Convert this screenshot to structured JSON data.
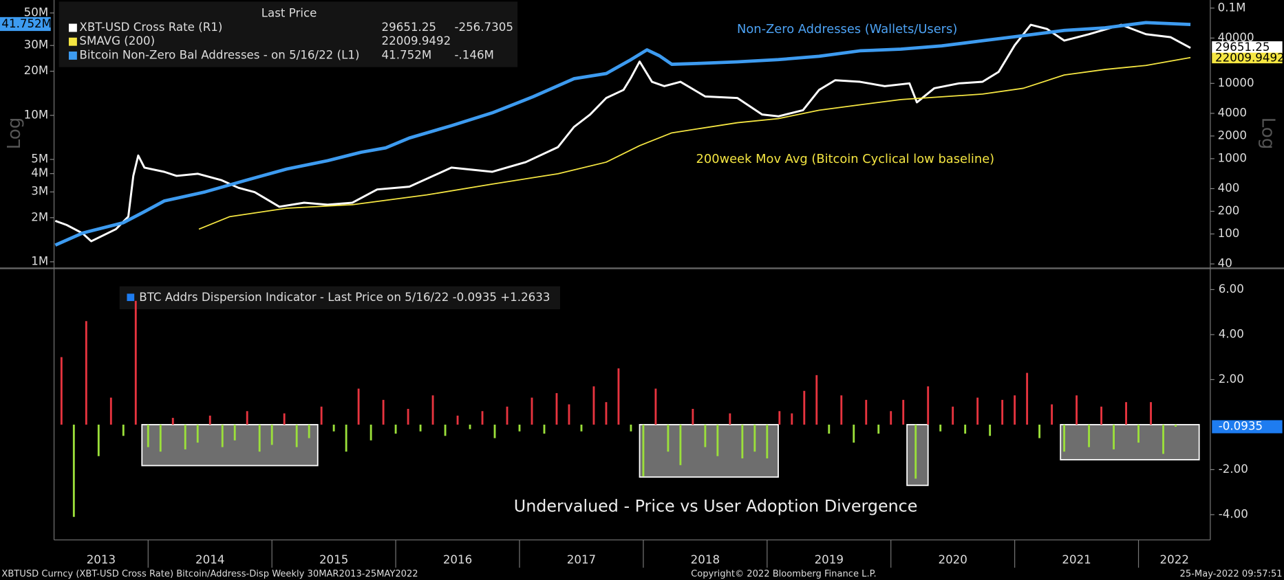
{
  "chart_data": [
    {
      "type": "line",
      "log": true,
      "y2log": true,
      "legend_title": "Last Price",
      "ylabel": "Log",
      "y2label": "Log",
      "xlim": [
        2013.24,
        2022.58
      ],
      "ylim": [
        1000000,
        57500000
      ],
      "yticks": [
        {
          "value": 1000000,
          "label": "1M"
        },
        {
          "value": 2000000,
          "label": "2M"
        },
        {
          "value": 3000000,
          "label": "3M"
        },
        {
          "value": 4000000,
          "label": "4M"
        },
        {
          "value": 5000000,
          "label": "5M"
        },
        {
          "value": 10000000,
          "label": "10M"
        },
        {
          "value": 20000000,
          "label": "20M"
        },
        {
          "value": 30000000,
          "label": "30M"
        },
        {
          "value": 50000000,
          "label": "50M"
        }
      ],
      "y2lim": [
        42.7,
        113000
      ],
      "y2ticks": [
        40,
        100,
        200,
        400,
        1000,
        2000,
        4000,
        10000,
        40000,
        {
          "value": 100000,
          "label": "0.1M"
        }
      ],
      "series": [
        {
          "name": "XBT-USD Cross Rate  (R1)",
          "color": "#ffffff",
          "axis": "y2",
          "last": "29651.25",
          "change": "-256.7305",
          "x": [
            2013.25,
            2013.34,
            2013.47,
            2013.54,
            2013.74,
            2013.84,
            2013.88,
            2013.92,
            2013.97,
            2014.13,
            2014.23,
            2014.4,
            2014.59,
            2014.73,
            2014.86,
            2015.06,
            2015.26,
            2015.45,
            2015.65,
            2015.85,
            2016.11,
            2016.45,
            2016.78,
            2017.05,
            2017.31,
            2017.44,
            2017.57,
            2017.7,
            2017.84,
            2017.9,
            2017.97,
            2018.07,
            2018.17,
            2018.3,
            2018.5,
            2018.76,
            2018.96,
            2019.09,
            2019.29,
            2019.42,
            2019.55,
            2019.75,
            2019.95,
            2020.15,
            2020.21,
            2020.35,
            2020.55,
            2020.74,
            2020.87,
            2021.0,
            2021.13,
            2021.26,
            2021.4,
            2021.6,
            2021.86,
            2022.06,
            2022.26,
            2022.42
          ],
          "values": [
            149,
            132,
            102,
            80,
            116,
            170,
            590,
            1100,
            760,
            670,
            590,
            630,
            520,
            410,
            360,
            230,
            260,
            245,
            260,
            390,
            425,
            760,
            670,
            900,
            1420,
            2640,
            3860,
            6400,
            8200,
            11900,
            19500,
            10500,
            9200,
            10500,
            6700,
            6400,
            3860,
            3650,
            4400,
            8200,
            11000,
            10500,
            9200,
            10000,
            5600,
            8600,
            10000,
            10500,
            14200,
            32000,
            60000,
            53000,
            37000,
            45000,
            60000,
            45000,
            41000,
            29651.25
          ]
        },
        {
          "name": "SMAVG (200)",
          "color": "#f5e642",
          "axis": "y2",
          "last": "22009.9492",
          "x": [
            2014.41,
            2014.66,
            2015.12,
            2015.65,
            2016.25,
            2016.78,
            2017.31,
            2017.7,
            2017.97,
            2018.23,
            2018.76,
            2019.09,
            2019.42,
            2019.75,
            2020.08,
            2020.74,
            2021.07,
            2021.4,
            2021.73,
            2022.06,
            2022.42
          ],
          "values": [
            116,
            170,
            220,
            245,
            330,
            460,
            630,
            900,
            1490,
            2200,
            3000,
            3400,
            4400,
            5200,
            6100,
            7200,
            8600,
            12900,
            15300,
            17300,
            22009.9492
          ]
        },
        {
          "name": "Bitcoin Non-Zero Bal Addresses -  on 5/16/22  (L1)",
          "color": "#3d9bf0",
          "last": "41.752M",
          "change": "-.146M",
          "x": [
            2013.25,
            2013.47,
            2013.8,
            2013.97,
            2014.13,
            2014.46,
            2014.79,
            2015.12,
            2015.45,
            2015.72,
            2015.92,
            2016.11,
            2016.45,
            2016.78,
            2017.11,
            2017.44,
            2017.7,
            2017.9,
            2018.03,
            2018.13,
            2018.23,
            2018.43,
            2018.76,
            2019.09,
            2019.42,
            2019.75,
            2020.08,
            2020.41,
            2020.74,
            2021.07,
            2021.4,
            2021.73,
            2022.06,
            2022.42
          ],
          "values": [
            1300000,
            1570000,
            1850000,
            2200000,
            2600000,
            3000000,
            3600000,
            4300000,
            4900000,
            5600000,
            6000000,
            7000000,
            8500000,
            10400000,
            13400000,
            17800000,
            19300000,
            24000000,
            28000000,
            25500000,
            22300000,
            22600000,
            23200000,
            24000000,
            25300000,
            27600000,
            28300000,
            29800000,
            32300000,
            35000000,
            38000000,
            39600000,
            43000000,
            41752000
          ]
        }
      ],
      "annotations": [
        {
          "text": "Non-Zero Addresses (Wallets/Users)",
          "color": "#4da3f5"
        },
        {
          "text": "200week Mov Avg (Bitcoin Cyclical low baseline)",
          "color": "#f5e642"
        }
      ]
    },
    {
      "type": "bar",
      "legend": "BTC Addrs Dispersion Indicator - Last Price on 5/16/22 -0.0935  +1.2633",
      "legend_color": "#1e7cf0",
      "positive_color": "#e8343f",
      "negative_color": "#9be03a",
      "xlim": [
        2013.24,
        2022.58
      ],
      "xticks": [
        2013,
        2014,
        2015,
        2016,
        2017,
        2018,
        2019,
        2020,
        2021,
        2022
      ],
      "ylim": [
        -5.05,
        6.8
      ],
      "yticks": [
        {
          "value": 6,
          "label": "6.00"
        },
        {
          "value": 4,
          "label": "4.00"
        },
        {
          "value": 2,
          "label": "2.00"
        },
        {
          "value": -2,
          "label": "-2.00"
        },
        {
          "value": -4,
          "label": "-4.00"
        }
      ],
      "x": [
        2013.3,
        2013.4,
        2013.5,
        2013.6,
        2013.7,
        2013.8,
        2013.9,
        2014.0,
        2014.1,
        2014.2,
        2014.3,
        2014.4,
        2014.5,
        2014.6,
        2014.7,
        2014.8,
        2014.9,
        2015.0,
        2015.1,
        2015.2,
        2015.3,
        2015.4,
        2015.5,
        2015.6,
        2015.7,
        2015.8,
        2015.9,
        2016.0,
        2016.1,
        2016.2,
        2016.3,
        2016.4,
        2016.5,
        2016.6,
        2016.7,
        2016.8,
        2016.9,
        2017.0,
        2017.1,
        2017.2,
        2017.3,
        2017.4,
        2017.5,
        2017.6,
        2017.7,
        2017.8,
        2017.9,
        2018.0,
        2018.1,
        2018.2,
        2018.3,
        2018.4,
        2018.5,
        2018.6,
        2018.7,
        2018.8,
        2018.9,
        2019.0,
        2019.1,
        2019.2,
        2019.3,
        2019.4,
        2019.5,
        2019.6,
        2019.7,
        2019.8,
        2019.9,
        2020.0,
        2020.1,
        2020.2,
        2020.3,
        2020.4,
        2020.5,
        2020.6,
        2020.7,
        2020.8,
        2020.9,
        2021.0,
        2021.1,
        2021.2,
        2021.3,
        2021.4,
        2021.5,
        2021.6,
        2021.7,
        2021.8,
        2021.9,
        2022.0,
        2022.1,
        2022.2,
        2022.3
      ],
      "values": [
        3.0,
        -4.1,
        4.6,
        -1.4,
        1.2,
        -0.5,
        5.5,
        -1.0,
        -1.2,
        0.3,
        -1.1,
        -0.8,
        0.4,
        -1.0,
        -0.7,
        0.6,
        -1.2,
        -0.9,
        0.5,
        -1.0,
        -0.6,
        0.8,
        -0.3,
        -1.2,
        1.6,
        -0.7,
        1.1,
        -0.4,
        0.7,
        -0.3,
        1.3,
        -0.5,
        0.4,
        -0.2,
        0.6,
        -0.6,
        0.8,
        -0.3,
        1.2,
        -0.4,
        1.4,
        0.9,
        -0.3,
        1.7,
        1.0,
        2.5,
        -0.3,
        -2.3,
        1.6,
        -1.2,
        -1.8,
        0.7,
        -1.0,
        -1.4,
        0.5,
        -1.5,
        -1.2,
        -1.5,
        0.6,
        0.5,
        1.5,
        2.2,
        -0.4,
        1.3,
        -0.8,
        1.1,
        -0.4,
        0.6,
        1.1,
        -2.4,
        1.7,
        -0.3,
        0.8,
        -0.4,
        1.2,
        -0.5,
        1.1,
        1.3,
        2.3,
        -0.6,
        0.9,
        -1.2,
        1.3,
        -1.0,
        0.8,
        -1.1,
        1.0,
        -0.8,
        1.0,
        -1.3,
        -0.0935
      ],
      "regions": [
        {
          "x": [
            2013.95,
            2015.37
          ],
          "y": [
            0,
            -1.82
          ]
        },
        {
          "x": [
            2017.97,
            2019.09
          ],
          "y": [
            0,
            -2.33
          ]
        },
        {
          "x": [
            2020.13,
            2020.3
          ],
          "y": [
            0,
            -2.7
          ]
        },
        {
          "x": [
            2021.37,
            2022.49
          ],
          "y": [
            0,
            -1.56
          ]
        }
      ],
      "annotation": "Undervalued - Price vs User Adoption Divergence"
    }
  ],
  "footer": {
    "left": "XBTUSD Curncy (XBT-USD Cross Rate) Bitcoin/Address-Disp  Weekly 30MAR2013-25MAY2022",
    "center": "Copyright© 2022 Bloomberg Finance L.P.",
    "right": "25-May-2022 09:57:51"
  }
}
